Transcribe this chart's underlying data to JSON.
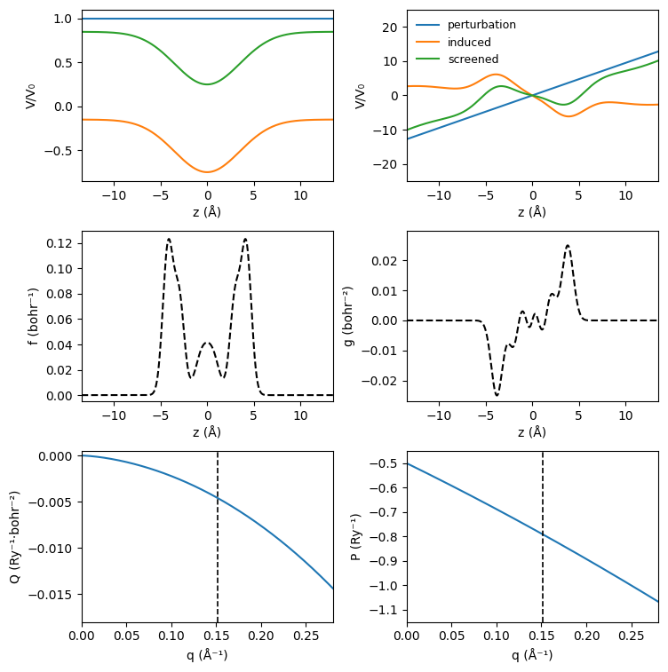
{
  "colors": {
    "perturbation": "#1f77b4",
    "induced": "#ff7f0e",
    "screened": "#2ca02c",
    "dashed": "black"
  },
  "top_left": {
    "xlim": [
      -13.5,
      13.5
    ],
    "ylim": [
      -0.85,
      1.1
    ],
    "yticks": [
      -0.5,
      0.0,
      0.5,
      1.0
    ],
    "ylabel": "V/V₀",
    "xlabel": "z (Å)"
  },
  "top_right": {
    "xlim": [
      -13.5,
      13.5
    ],
    "ylim": [
      -25,
      25
    ],
    "yticks": [
      -20,
      -10,
      0,
      10,
      20
    ],
    "ylabel": "V/V₀",
    "xlabel": "z (Å)"
  },
  "mid_left": {
    "xlim": [
      -13.5,
      13.5
    ],
    "ylim": [
      -0.005,
      0.13
    ],
    "yticks": [
      0.0,
      0.02,
      0.04,
      0.06,
      0.08,
      0.1,
      0.12
    ],
    "ylabel": "f (bohr⁻¹)",
    "xlabel": "z (Å)"
  },
  "mid_right": {
    "xlim": [
      -13.5,
      13.5
    ],
    "ylim": [
      -0.027,
      0.03
    ],
    "yticks": [
      -0.02,
      -0.01,
      0.0,
      0.01,
      0.02
    ],
    "ylabel": "g (bohr⁻²)",
    "xlabel": "z (Å)"
  },
  "bot_left": {
    "xlim": [
      0.0,
      0.28
    ],
    "ylim": [
      -0.018,
      0.0005
    ],
    "yticks": [
      0.0,
      -0.005,
      -0.01,
      -0.015
    ],
    "ylabel": "Q (Ry⁻¹·bohr⁻²)",
    "xlabel": "q (Å⁻¹)",
    "vline": 0.152
  },
  "bot_right": {
    "xlim": [
      0.0,
      0.28
    ],
    "ylim": [
      -1.15,
      -0.45
    ],
    "yticks": [
      -1.1,
      -1.0,
      -0.9,
      -0.8,
      -0.7,
      -0.6,
      -0.5
    ],
    "ylabel": "P (Ry⁻¹)",
    "xlabel": "q (Å⁻¹)",
    "vline": 0.152
  },
  "legend_labels": [
    "perturbation",
    "induced",
    "screened"
  ]
}
